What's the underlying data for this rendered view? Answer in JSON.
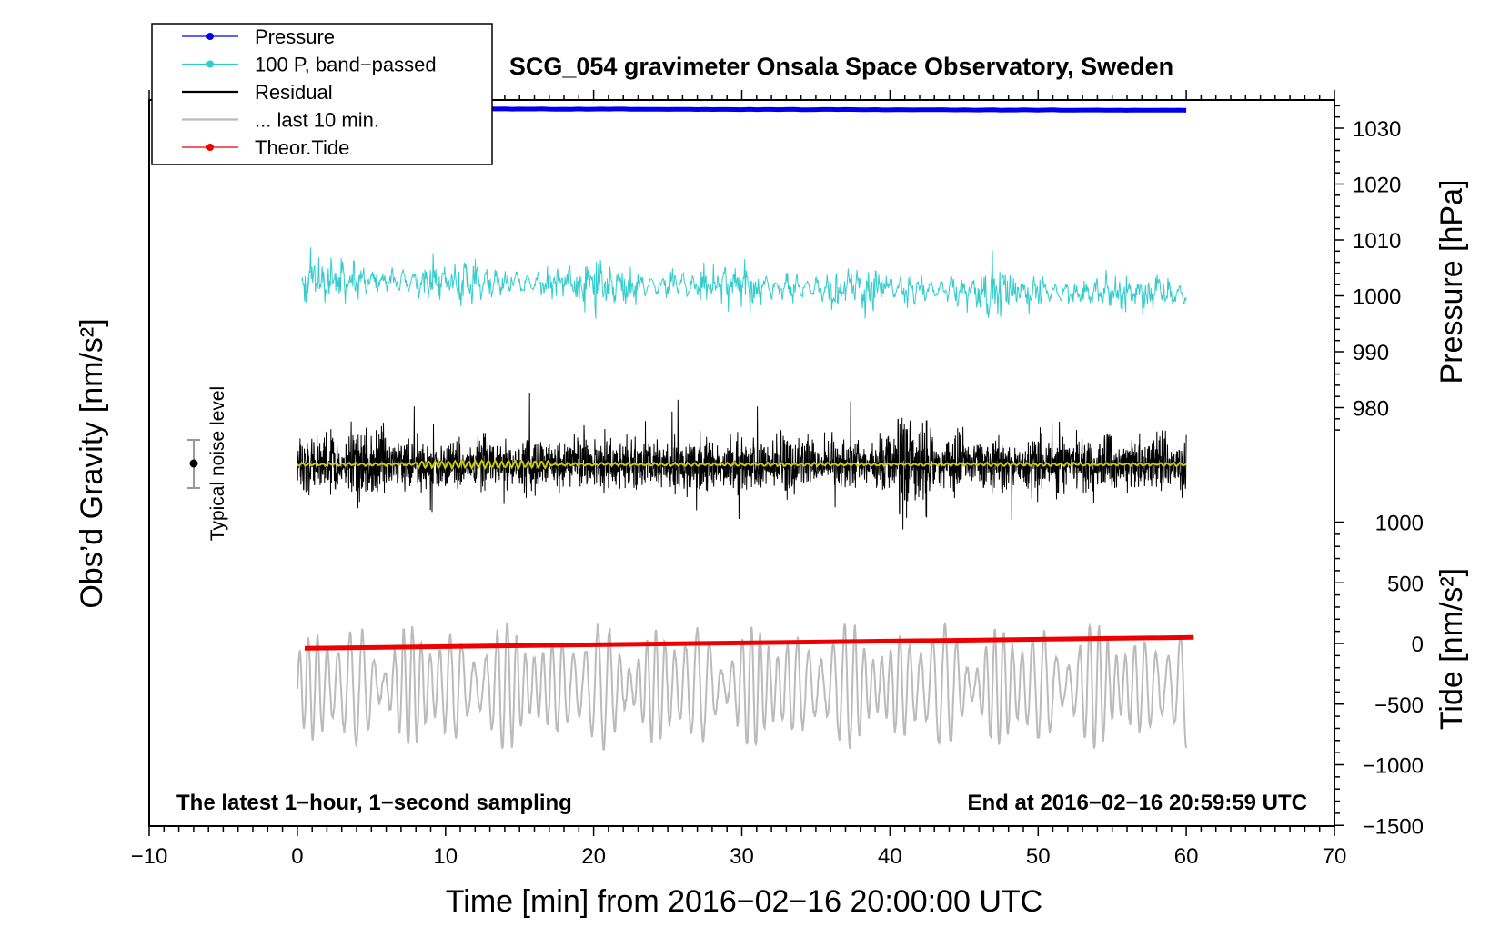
{
  "chart_data": {
    "type": "line",
    "title": "SCG_054 gravimeter Onsala Space Observatory, Sweden",
    "xlabel": "Time [min] from 2016−02−16 20:00:00 UTC",
    "ylabel_left": "Obs’d Gravity [nm/s²]",
    "ylabel_right_top": "Pressure [hPa]",
    "ylabel_right_bottom": "Tide [nm/s²]",
    "xlim": [
      -10,
      70
    ],
    "x_ticks": [
      -10,
      0,
      10,
      20,
      30,
      40,
      50,
      60,
      70
    ],
    "x_tick_labels": [
      "−10",
      "0",
      "10",
      "20",
      "30",
      "40",
      "50",
      "60",
      "70"
    ],
    "pressure_ticks": [
      1030,
      1020,
      1010,
      1000,
      990,
      980
    ],
    "pressure_tick_labels": [
      "1030",
      "1020",
      "1010",
      "1000",
      "990",
      "980"
    ],
    "tide_ticks": [
      1000,
      500,
      0,
      -500,
      -1000,
      -1500
    ],
    "tide_tick_labels": [
      "1000",
      "500",
      "0",
      "−500",
      "−1000",
      "−1500"
    ],
    "note_left": "The latest 1−hour, 1−second sampling",
    "note_right": "End at 2016−02−16 20:59:59 UTC",
    "noise_label": "Typical noise level",
    "legend": [
      {
        "label": "Pressure",
        "color": "#0000ee",
        "marker": true
      },
      {
        "label": "100 P, band−passed",
        "color": "#33cccc",
        "marker": true
      },
      {
        "label": "Residual",
        "color": "#000000",
        "marker": false
      },
      {
        "label": "... last 10 min.",
        "color": "#bbbbbb",
        "marker": false
      },
      {
        "label": "Theor.Tide",
        "color": "#ee0000",
        "marker": true
      }
    ],
    "series": [
      {
        "name": "Pressure",
        "axis": "pressure",
        "x_range": [
          0,
          60
        ],
        "start": 1033.5,
        "end": 1033.2,
        "color": "#0000ee"
      },
      {
        "name": "100 P, band−passed",
        "axis": "pressure",
        "x_range": [
          0,
          60
        ],
        "center": 1003,
        "amplitude": 6,
        "color": "#33cccc"
      },
      {
        "name": "Residual",
        "axis": "left",
        "x_range": [
          0,
          60
        ],
        "note": "high-frequency noise about a constant baseline",
        "color": "#000000"
      },
      {
        "name": "Residual smoothed",
        "axis": "left",
        "x_range": [
          0,
          60
        ],
        "color": "#cccc00"
      },
      {
        "name": "... last 10 min.",
        "axis": "tide",
        "x_range": [
          0,
          60
        ],
        "center": -350,
        "amplitude": 500,
        "color": "#bbbbbb"
      },
      {
        "name": "Theor.Tide",
        "axis": "tide",
        "x_range": [
          0.5,
          60.5
        ],
        "start": -40,
        "end": 50,
        "color": "#ee0000"
      }
    ],
    "colors": {
      "axis": "#000000",
      "noise_bar": "#999999"
    }
  }
}
